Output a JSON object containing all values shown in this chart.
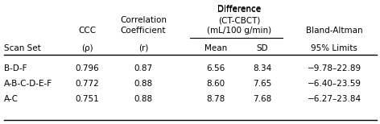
{
  "rows": [
    [
      "B-D-F",
      "0.796",
      "0.87",
      "6.56",
      "8.34",
      "−9.78–22.89"
    ],
    [
      "A-B-C-D-E-F",
      "0.772",
      "0.88",
      "8.60",
      "7.65",
      "−6.40–23.59"
    ],
    [
      "A-C",
      "0.751",
      "0.88",
      "8.78",
      "7.68",
      "−6.27–23.84"
    ]
  ],
  "background_color": "#ffffff",
  "font_size": 7.5,
  "fig_width": 4.72,
  "fig_height": 1.54,
  "dpi": 100
}
